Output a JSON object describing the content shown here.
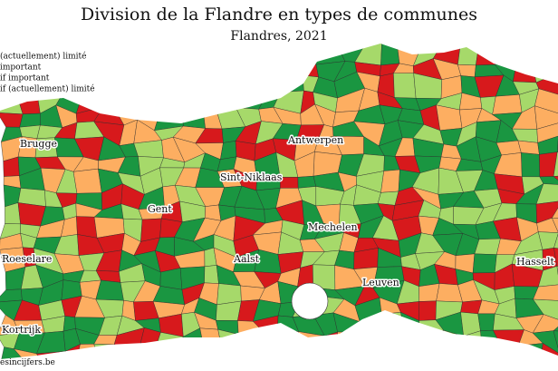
{
  "title": "Division de la Flandre en types de communes",
  "subtitle": "Flandres, 2021",
  "legend": [
    {
      "label": "(actuellement) limité",
      "color": "#a6d96a"
    },
    {
      "label": "important",
      "color": "#1a9641"
    },
    {
      "label": "if important",
      "color": "#fdae61"
    },
    {
      "label": "if (actuellement) limité",
      "color": "#d7191c"
    }
  ],
  "cities": [
    {
      "label": "Brugge"
    },
    {
      "label": "Antwerpen"
    },
    {
      "label": "Sint-Niklaas"
    },
    {
      "label": "Gent"
    },
    {
      "label": "Mechelen"
    },
    {
      "label": "Aalst"
    },
    {
      "label": "Roeselare"
    },
    {
      "label": "Leuven"
    },
    {
      "label": "Hasselt"
    },
    {
      "label": "Kortrijk"
    }
  ],
  "source": "esincijfers.be"
}
